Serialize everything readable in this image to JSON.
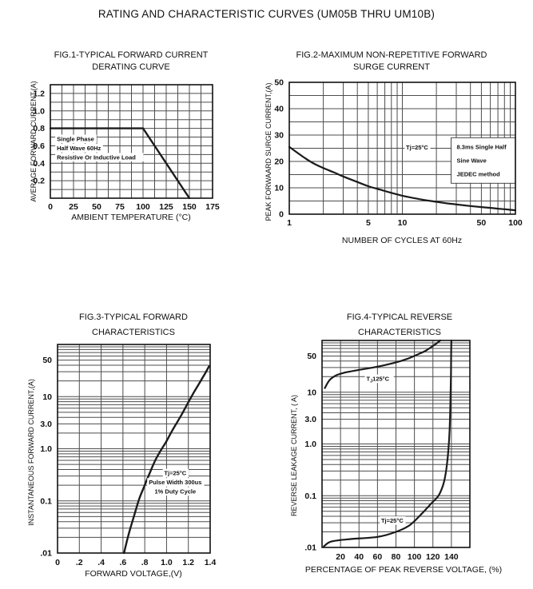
{
  "page_title": "RATING AND CHARACTERISTIC CURVES (UM05B THRU UM10B)",
  "chart_data": [
    {
      "id": "fig1",
      "type": "line",
      "title_lines": [
        "FIG.1-TYPICAL FORWARD CURRENT",
        "DERATING CURVE"
      ],
      "xlabel": "AMBIENT TEMPERATURE (°C)",
      "ylabel": "AVERAGE FORWARD CURRENT,(A)",
      "x": {
        "scale": "linear",
        "min": 0,
        "max": 175,
        "grid_step": 12.5,
        "ticks": [
          0,
          25,
          50,
          75,
          100,
          125,
          150,
          175
        ],
        "tick_labels": [
          "0",
          "25",
          "50",
          "75",
          "100",
          "125",
          "150",
          "175"
        ]
      },
      "y": {
        "scale": "linear",
        "min": 0,
        "max": 1.3,
        "grid_step": 0.1,
        "ticks": [
          1.2,
          1.0,
          0.8,
          0.6,
          0.4,
          0.2
        ],
        "tick_labels": [
          "1.2",
          "1.0",
          "0.8",
          "0.6",
          "0.4",
          "0.2"
        ]
      },
      "series": [
        {
          "name": "derating-curve",
          "smooth": false,
          "points": [
            [
              0,
              0.8
            ],
            [
              100,
              0.8
            ],
            [
              150,
              0
            ]
          ]
        }
      ],
      "annotations": [
        {
          "style": "strips",
          "align": "left",
          "x": 7,
          "y": 0.655,
          "lines": [
            "Single Phase",
            "Half Wave 60Hz",
            "Resistive Or Inductive Load"
          ]
        }
      ]
    },
    {
      "id": "fig2",
      "type": "line",
      "title_lines": [
        "FIG.2-MAXIMUM NON-REPETITIVE FORWARD",
        "SURGE CURRENT"
      ],
      "xlabel": "NUMBER OF CYCLES AT 60Hz",
      "ylabel": "PEAK FORWAARD SURGE CURRENT,(A)",
      "x": {
        "scale": "log",
        "min": 1,
        "max": 100,
        "ticks": [
          1,
          5,
          10,
          50,
          100
        ],
        "tick_labels": [
          "1",
          "5",
          "10",
          "50",
          "100"
        ]
      },
      "y": {
        "scale": "linear",
        "min": 0,
        "max": 50,
        "grid_step": 5,
        "ticks": [
          50,
          40,
          30,
          20,
          10,
          0
        ],
        "tick_labels": [
          "50",
          "40",
          "30",
          "20",
          "10",
          "0"
        ]
      },
      "series": [
        {
          "name": "surge-current-curve",
          "smooth": true,
          "points": [
            [
              1,
              25.5
            ],
            [
              1.3,
              22
            ],
            [
              1.6,
              19.5
            ],
            [
              2,
              17.5
            ],
            [
              2.5,
              15.8
            ],
            [
              3,
              14.3
            ],
            [
              4,
              12.2
            ],
            [
              5,
              10.6
            ],
            [
              6,
              9.6
            ],
            [
              7,
              8.8
            ],
            [
              8,
              8.1
            ],
            [
              10,
              7
            ],
            [
              13,
              6
            ],
            [
              16,
              5.3
            ],
            [
              20,
              4.7
            ],
            [
              25,
              4.1
            ],
            [
              30,
              3.7
            ],
            [
              40,
              3.1
            ],
            [
              50,
              2.7
            ],
            [
              60,
              2.4
            ],
            [
              70,
              2.1
            ],
            [
              85,
              1.8
            ],
            [
              100,
              1.5
            ]
          ]
        }
      ],
      "annotations": [
        {
          "style": "strips",
          "align": "center",
          "x": 13.5,
          "y": 24.5,
          "lines": [
            "Tj=25°C"
          ]
        },
        {
          "style": "box",
          "align": "left",
          "x": 27,
          "y": 29,
          "lines": [
            "8.3ms Single Half",
            "Sine Wave",
            "JEDEC method"
          ]
        }
      ]
    },
    {
      "id": "fig3",
      "type": "line",
      "title_lines": [
        "FIG.3-TYPICAL FORWARD",
        "CHARACTERISTICS"
      ],
      "xlabel": "FORWARD VOLTAGE,(V)",
      "ylabel": "INSTANTANEOUS FORWARD CURRENT,(A)",
      "x": {
        "scale": "linear",
        "min": 0,
        "max": 1.4,
        "grid_step": 0.2,
        "ticks": [
          0,
          0.2,
          0.4,
          0.6,
          0.8,
          1.0,
          1.2,
          1.4
        ],
        "tick_labels": [
          "0",
          ".2",
          ".4",
          ".6",
          ".8",
          "1.0",
          "1.2",
          "1.4"
        ]
      },
      "y": {
        "scale": "log",
        "min": 0.01,
        "max": 100,
        "ticks": [
          50,
          10,
          3.0,
          1.0,
          0.1,
          0.01
        ],
        "tick_labels": [
          "50",
          "10",
          "3.0",
          "1.0",
          "0.1",
          ".01"
        ]
      },
      "series": [
        {
          "name": "forward-characteristic-curve",
          "smooth": true,
          "points": [
            [
              0.61,
              0.01
            ],
            [
              0.65,
              0.022
            ],
            [
              0.7,
              0.05
            ],
            [
              0.75,
              0.11
            ],
            [
              0.8,
              0.2
            ],
            [
              0.85,
              0.36
            ],
            [
              0.9,
              0.62
            ],
            [
              0.95,
              0.95
            ],
            [
              1.0,
              1.4
            ],
            [
              1.05,
              2.2
            ],
            [
              1.1,
              3.3
            ],
            [
              1.15,
              5.0
            ],
            [
              1.2,
              7.8
            ],
            [
              1.25,
              12
            ],
            [
              1.3,
              18
            ],
            [
              1.35,
              27
            ],
            [
              1.39,
              38
            ]
          ]
        }
      ],
      "annotations": [
        {
          "style": "strips",
          "align": "center",
          "x": 1.08,
          "y": 0.31,
          "lines": [
            "Tj=25°C",
            "Pulse Width 300us",
            "1% Duty Cycle"
          ]
        }
      ]
    },
    {
      "id": "fig4",
      "type": "line",
      "title_lines": [
        "FIG.4-TYPICAL REVERSE",
        "CHARACTERISTICS"
      ],
      "xlabel": "PERCENTAGE OF PEAK REVERSE VOLTAGE, (%)",
      "ylabel": "REVERSE LEAKAGE CURRENT, ( A)",
      "x": {
        "scale": "linear",
        "min": 0,
        "max": 160,
        "grid_step": 20,
        "ticks": [
          20,
          40,
          60,
          80,
          100,
          120,
          140
        ],
        "tick_labels": [
          "20",
          "40",
          "60",
          "80",
          "100",
          "120",
          "140"
        ]
      },
      "y": {
        "scale": "log",
        "min": 0.01,
        "max": 100,
        "ticks": [
          50,
          10,
          3.0,
          1.0,
          0.1,
          0.01
        ],
        "tick_labels": [
          "50",
          "10",
          "3.0",
          "1.0",
          "0.1",
          ".01"
        ]
      },
      "series": [
        {
          "name": "reverse-leakage-125c-curve",
          "smooth": true,
          "points": [
            [
              3,
              12
            ],
            [
              8,
              17
            ],
            [
              15,
              21
            ],
            [
              25,
              24
            ],
            [
              40,
              27
            ],
            [
              55,
              30
            ],
            [
              70,
              34
            ],
            [
              85,
              40
            ],
            [
              95,
              46
            ],
            [
              105,
              55
            ],
            [
              112,
              63
            ],
            [
              118,
              74
            ],
            [
              124,
              88
            ],
            [
              128,
              100
            ]
          ]
        },
        {
          "name": "reverse-leakage-25c-curve",
          "smooth": true,
          "points": [
            [
              2,
              0.0105
            ],
            [
              10,
              0.013
            ],
            [
              30,
              0.0145
            ],
            [
              60,
              0.016
            ],
            [
              80,
              0.02
            ],
            [
              95,
              0.027
            ],
            [
              108,
              0.045
            ],
            [
              118,
              0.07
            ],
            [
              126,
              0.1
            ],
            [
              131,
              0.16
            ],
            [
              134,
              0.28
            ],
            [
              136,
              0.55
            ],
            [
              137.5,
              1.2
            ],
            [
              138.5,
              3.0
            ],
            [
              139,
              7
            ],
            [
              139.5,
              20
            ],
            [
              139.8,
              60
            ],
            [
              140,
              100
            ]
          ]
        }
      ],
      "annotations": [
        {
          "style": "strips",
          "align": "left",
          "x": 48,
          "y": 16.5,
          "lines": [
            "TJ=125°C"
          ]
        },
        {
          "style": "strips",
          "align": "center",
          "x": 76,
          "y": 0.03,
          "lines": [
            "Tj=25°C"
          ]
        }
      ]
    }
  ]
}
